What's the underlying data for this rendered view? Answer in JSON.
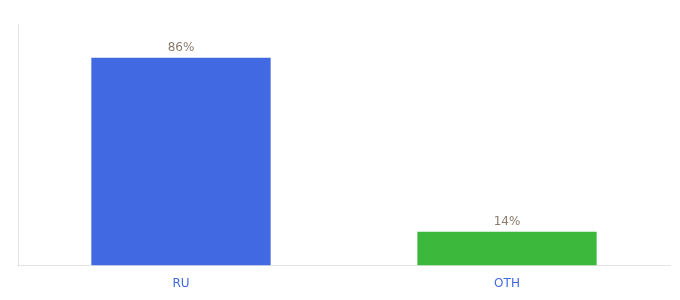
{
  "chart_data": {
    "type": "bar",
    "categories": [
      "RU",
      "OTH"
    ],
    "values": [
      86,
      14
    ],
    "value_labels": [
      "86%",
      "14%"
    ],
    "colors": [
      "#4169E1",
      "#3CB93C"
    ],
    "ylim": [
      0,
      100
    ],
    "yticks": [],
    "grid": false,
    "data_labels": true,
    "tick_labels": "x"
  }
}
